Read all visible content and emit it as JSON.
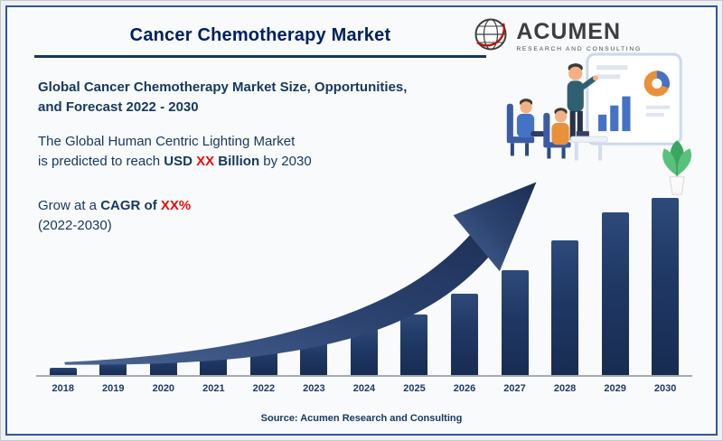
{
  "header": {
    "title": "Cancer Chemotherapy Market",
    "subtitle_line1": "Global Cancer Chemotherapy Market Size, Opportunities,",
    "subtitle_line2": "and Forecast 2022 - 2030",
    "description": {
      "line1": "The Global Human Centric Lighting Market",
      "line2_prefix": " is predicted to reach ",
      "usd": "USD ",
      "xx": "XX",
      "billion": " Billion",
      "suffix": " by 2030"
    },
    "growth": {
      "prefix": "Grow at a ",
      "bold": "CAGR of ",
      "xx": "XX%",
      "line2": "(2022-2030)"
    }
  },
  "logo": {
    "brand": "ACUMEN",
    "tagline": "RESEARCH AND CONSULTING",
    "globe_icon": "globe-icon"
  },
  "footer": {
    "source": "Source: Acumen Research and Consulting"
  },
  "colors": {
    "title_navy": "#002060",
    "body_navy": "#17375e",
    "accent_red": "#ee0a0a",
    "bar_navy": "#1f3864",
    "border_blue": "#2f5597"
  },
  "chart_data": {
    "type": "bar",
    "title": "Cancer Chemotherapy Market",
    "categories": [
      "2018",
      "2019",
      "2020",
      "2021",
      "2022",
      "2023",
      "2024",
      "2025",
      "2026",
      "2027",
      "2028",
      "2029",
      "2030"
    ],
    "values": [
      4,
      7,
      10,
      14,
      17,
      21,
      26,
      34,
      46,
      59,
      76,
      92,
      100
    ],
    "units": "relative bar height, % of 2030 bar (no y-axis values shown in image)",
    "xlabel": "",
    "ylabel": "",
    "ylim": [
      0,
      100
    ],
    "grid": false,
    "legend": false,
    "bar_color": "#1f3864",
    "annotation": "upward curved growth arrow over bars"
  }
}
